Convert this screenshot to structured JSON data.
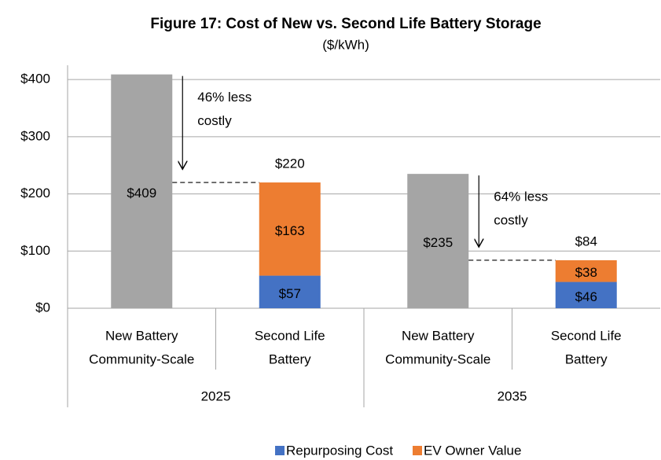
{
  "chart_data": {
    "type": "stacked_bar",
    "title": "Figure 17: Cost of New vs. Second Life Battery Storage",
    "subtitle": "($/kWh)",
    "categories": [
      [
        "New Battery",
        "Community-Scale"
      ],
      [
        "Second Life",
        "Battery"
      ],
      [
        "New Battery",
        "Community-Scale"
      ],
      [
        "Second Life",
        "Battery"
      ]
    ],
    "groups": [
      "2025",
      "2035"
    ],
    "series": [
      {
        "color": "#a5a5a5",
        "values": [
          409,
          null,
          235,
          null
        ],
        "value_labels": [
          "$409",
          null,
          "$235",
          null
        ]
      },
      {
        "name": "Repurposing Cost",
        "color": "#4472c4",
        "values": [
          null,
          57,
          null,
          46
        ],
        "value_labels": [
          null,
          "$57",
          null,
          "$46"
        ]
      },
      {
        "name": "EV Owner Value",
        "color": "#ed7d31",
        "values": [
          null,
          163,
          null,
          38
        ],
        "value_labels": [
          null,
          "$163",
          null,
          "$38"
        ]
      }
    ],
    "totals": [
      null,
      220,
      null,
      84
    ],
    "total_labels": [
      null,
      "$220",
      null,
      "$84"
    ],
    "annotations": [
      {
        "lines": [
          "46% less",
          "costly"
        ]
      },
      {
        "lines": [
          "64% less",
          "costly"
        ]
      }
    ],
    "ylim": [
      0,
      425
    ],
    "yticks": [
      {
        "value": 0,
        "label": "$0"
      },
      {
        "value": 100,
        "label": "$100"
      },
      {
        "value": 200,
        "label": "$200"
      },
      {
        "value": 300,
        "label": "$300"
      },
      {
        "value": 400,
        "label": "$400"
      }
    ],
    "grid": true,
    "legend": "bottom"
  }
}
